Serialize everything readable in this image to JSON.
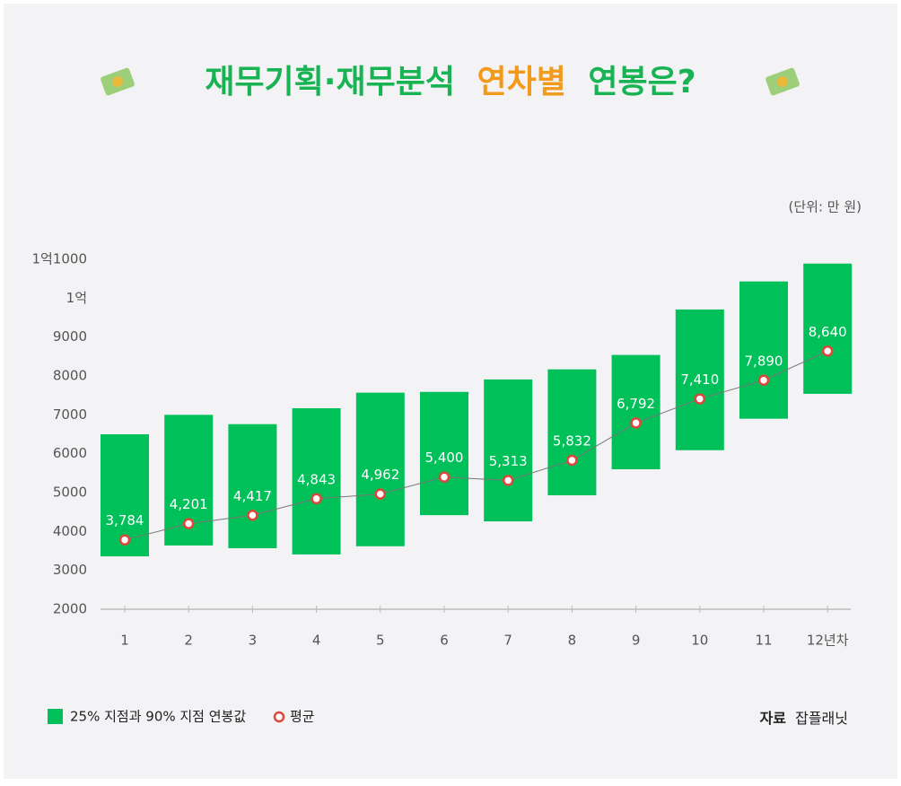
{
  "chart_data": {
    "type": "range_bar",
    "title_parts": [
      "재무기획·재무분석",
      "연차별",
      "연봉은?"
    ],
    "unit": "(단위: 만 원)",
    "source_label": "자료",
    "source": "잡플래닛",
    "categories": [
      "1",
      "2",
      "3",
      "4",
      "5",
      "6",
      "7",
      "8",
      "9",
      "10",
      "11",
      "12년차"
    ],
    "series": [
      {
        "name": "25% 지점과 90% 지점 연봉값",
        "color": "#00c05a",
        "low": [
          3360,
          3640,
          3570,
          3410,
          3620,
          4420,
          4260,
          4930,
          5600,
          6090,
          6900,
          7540
        ],
        "high": [
          6500,
          7000,
          6760,
          7170,
          7570,
          7590,
          7910,
          8170,
          8540,
          9710,
          10430,
          10890
        ]
      },
      {
        "name": "평균",
        "color": "#e0453a",
        "values": [
          3784,
          4201,
          4417,
          4843,
          4962,
          5400,
          5313,
          5832,
          6792,
          7410,
          7890,
          8640
        ],
        "value_labels": [
          "3,784",
          "4,201",
          "4,417",
          "4,843",
          "4,962",
          "5,400",
          "5,313",
          "5,832",
          "6,792",
          "7,410",
          "7,890",
          "8,640"
        ]
      }
    ],
    "ylim": [
      2000,
      11000
    ],
    "yticks": [
      2000,
      3000,
      4000,
      5000,
      6000,
      7000,
      8000,
      9000,
      {
        "value": 10000,
        "label": "1억"
      },
      {
        "value": 11000,
        "label": "1억1000"
      }
    ],
    "grid": false
  }
}
